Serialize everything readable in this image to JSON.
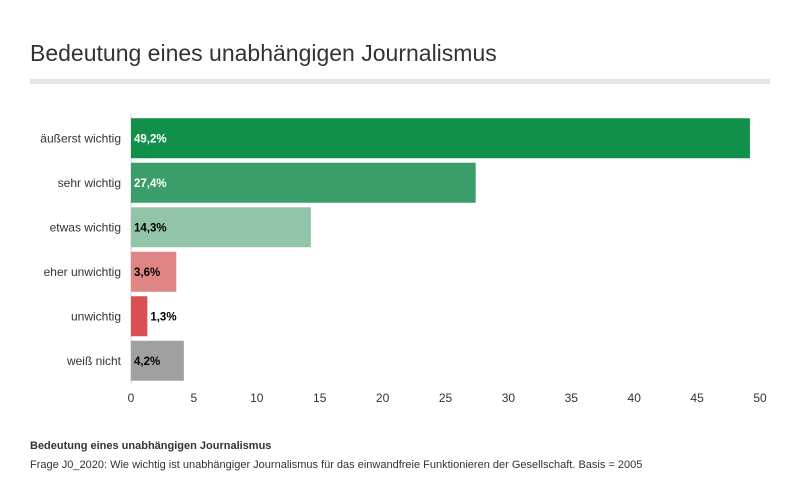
{
  "header": {
    "title": "Bedeutung eines unabhängigen Journalismus"
  },
  "footer": {
    "caption_title": "Bedeutung eines unabhängigen Journalismus",
    "caption_note": "Frage J0_2020: Wie wichtig ist unabhängiger Journalismus für das einwandfreie Funktionieren der Gesellschaft. Basis = 2005"
  },
  "chart_data": {
    "type": "bar",
    "orientation": "horizontal",
    "title": "Bedeutung eines unabhängigen Journalismus",
    "categories": [
      "äußerst wichtig",
      "sehr wichtig",
      "etwas wichtig",
      "eher unwichtig",
      "unwichtig",
      "weiß nicht"
    ],
    "values": [
      49.2,
      27.4,
      14.3,
      3.6,
      1.3,
      4.2
    ],
    "labels": [
      "49,2%",
      "27,4%",
      "14,3%",
      "3,6%",
      "1,3%",
      "4,2%"
    ],
    "colors": [
      "#109048",
      "#3a9e6a",
      "#92c5a8",
      "#e08586",
      "#d94f54",
      "#a0a0a0"
    ],
    "label_colors": [
      "#ffffff",
      "#ffffff",
      "#000000",
      "#000000",
      "#000000",
      "#000000"
    ],
    "xlim": [
      0,
      50
    ],
    "xticks": [
      0,
      5,
      10,
      15,
      20,
      25,
      30,
      35,
      40,
      45,
      50
    ],
    "grid": false
  }
}
